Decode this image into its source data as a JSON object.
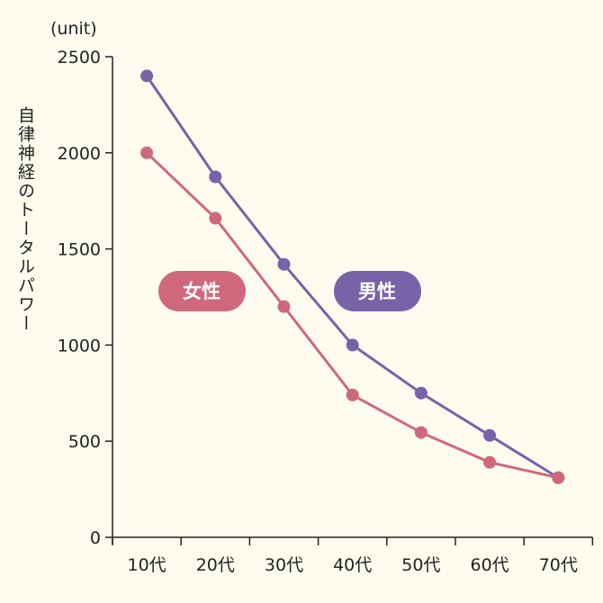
{
  "chart_data": {
    "type": "line",
    "unit_label": "(unit)",
    "ylabel": "自律神経のトータルパワー",
    "xlabel": "",
    "categories": [
      "10代",
      "20代",
      "30代",
      "40代",
      "50代",
      "60代",
      "70代"
    ],
    "ylim": [
      0,
      2500
    ],
    "yticks": [
      0,
      500,
      1000,
      1500,
      2000,
      2500
    ],
    "grid": false,
    "series": [
      {
        "name": "男性",
        "color": "#7862a8",
        "values": [
          2400,
          1875,
          1420,
          1000,
          750,
          530,
          310
        ]
      },
      {
        "name": "女性",
        "color": "#d0687c",
        "values": [
          2000,
          1660,
          1200,
          740,
          545,
          390,
          310
        ]
      }
    ]
  },
  "colors": {
    "background": "#fdfcef",
    "axis": "#222222"
  }
}
